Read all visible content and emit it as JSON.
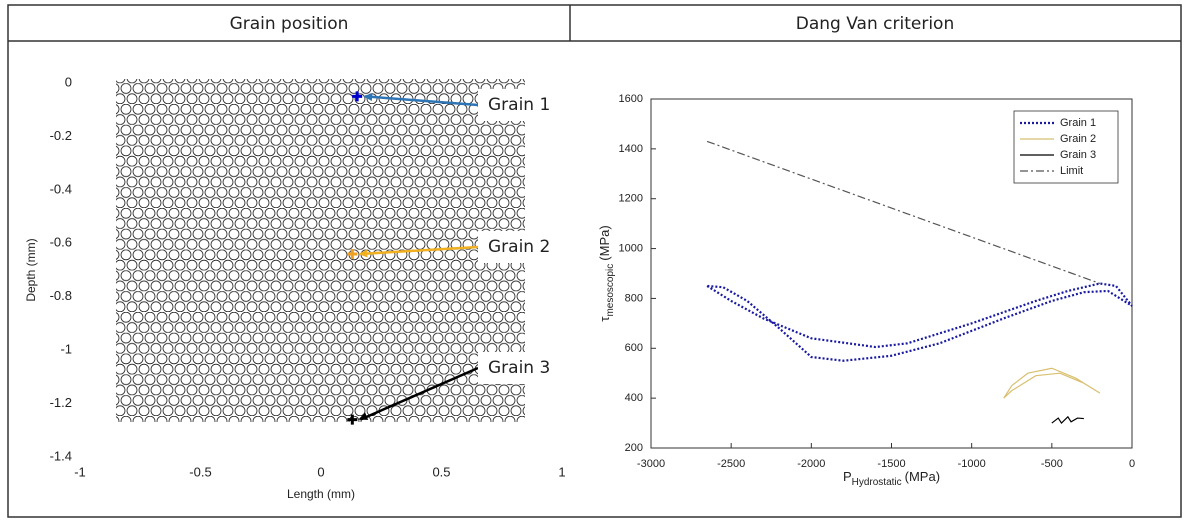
{
  "header": {
    "left": "Grain position",
    "right": "Dang Van criterion"
  },
  "chart_data": [
    {
      "type": "scatter",
      "x_label": "Length (mm)",
      "y_label": "Depth (mm)",
      "xlim": [
        -1,
        1
      ],
      "ylim": [
        -1.4,
        0
      ],
      "xticks": [
        -1,
        -0.5,
        0,
        0.5,
        1
      ],
      "yticks": [
        0,
        -0.2,
        -0.4,
        -0.6,
        -0.8,
        -1,
        -1.2,
        -1.4
      ],
      "series": [
        {
          "name": "Grain 1",
          "color": "#0000cc",
          "x": [
            0.15
          ],
          "y": [
            -0.05
          ]
        },
        {
          "name": "Grain 2",
          "color": "#f0a020",
          "x": [
            0.13
          ],
          "y": [
            -0.64
          ]
        },
        {
          "name": "Grain 3",
          "color": "#000000",
          "x": [
            0.13
          ],
          "y": [
            -1.26
          ]
        }
      ]
    },
    {
      "type": "line",
      "x_label": {
        "main": "P",
        "sub": "Hydrostatic",
        "unit": "(MPa)"
      },
      "y_label": {
        "main": "τ",
        "sub": "mesoscopic",
        "unit": "(MPa)"
      },
      "xlim": [
        -3000,
        0
      ],
      "ylim": [
        200,
        1600
      ],
      "xticks": [
        -3000,
        -2500,
        -2000,
        -1500,
        -1000,
        -500,
        0
      ],
      "yticks": [
        200,
        400,
        600,
        800,
        1000,
        1200,
        1400,
        1600
      ],
      "legend": "top-right",
      "series": [
        {
          "name": "Grain 1",
          "color": "#1a1aa0",
          "style": "dotted",
          "x": [
            -2650,
            -2500,
            -2300,
            -2000,
            -1600,
            -1400,
            -1000,
            -600,
            -400,
            -200,
            -100,
            0,
            -150,
            -300,
            -500,
            -800,
            -1200,
            -1500,
            -1800,
            -2000,
            -2200,
            -2400,
            -2550,
            -2650
          ],
          "y": [
            850,
            790,
            720,
            640,
            605,
            620,
            700,
            790,
            830,
            860,
            850,
            770,
            830,
            825,
            790,
            720,
            620,
            570,
            550,
            565,
            680,
            790,
            845,
            850
          ]
        },
        {
          "name": "Grain 2",
          "color": "#d8c070",
          "style": "solid",
          "x": [
            -800,
            -750,
            -650,
            -500,
            -350,
            -200,
            -300,
            -450,
            -600,
            -750,
            -800
          ],
          "y": [
            400,
            450,
            500,
            520,
            480,
            420,
            460,
            500,
            490,
            430,
            400
          ]
        },
        {
          "name": "Grain 3",
          "color": "#000000",
          "style": "solid",
          "x": [
            -500,
            -460,
            -440,
            -400,
            -380,
            -340,
            -300
          ],
          "y": [
            300,
            320,
            300,
            325,
            305,
            320,
            318
          ]
        },
        {
          "name": "Limit",
          "color": "#555555",
          "style": "dashdot",
          "x": [
            -2650,
            -200
          ],
          "y": [
            1430,
            860
          ]
        }
      ]
    }
  ]
}
